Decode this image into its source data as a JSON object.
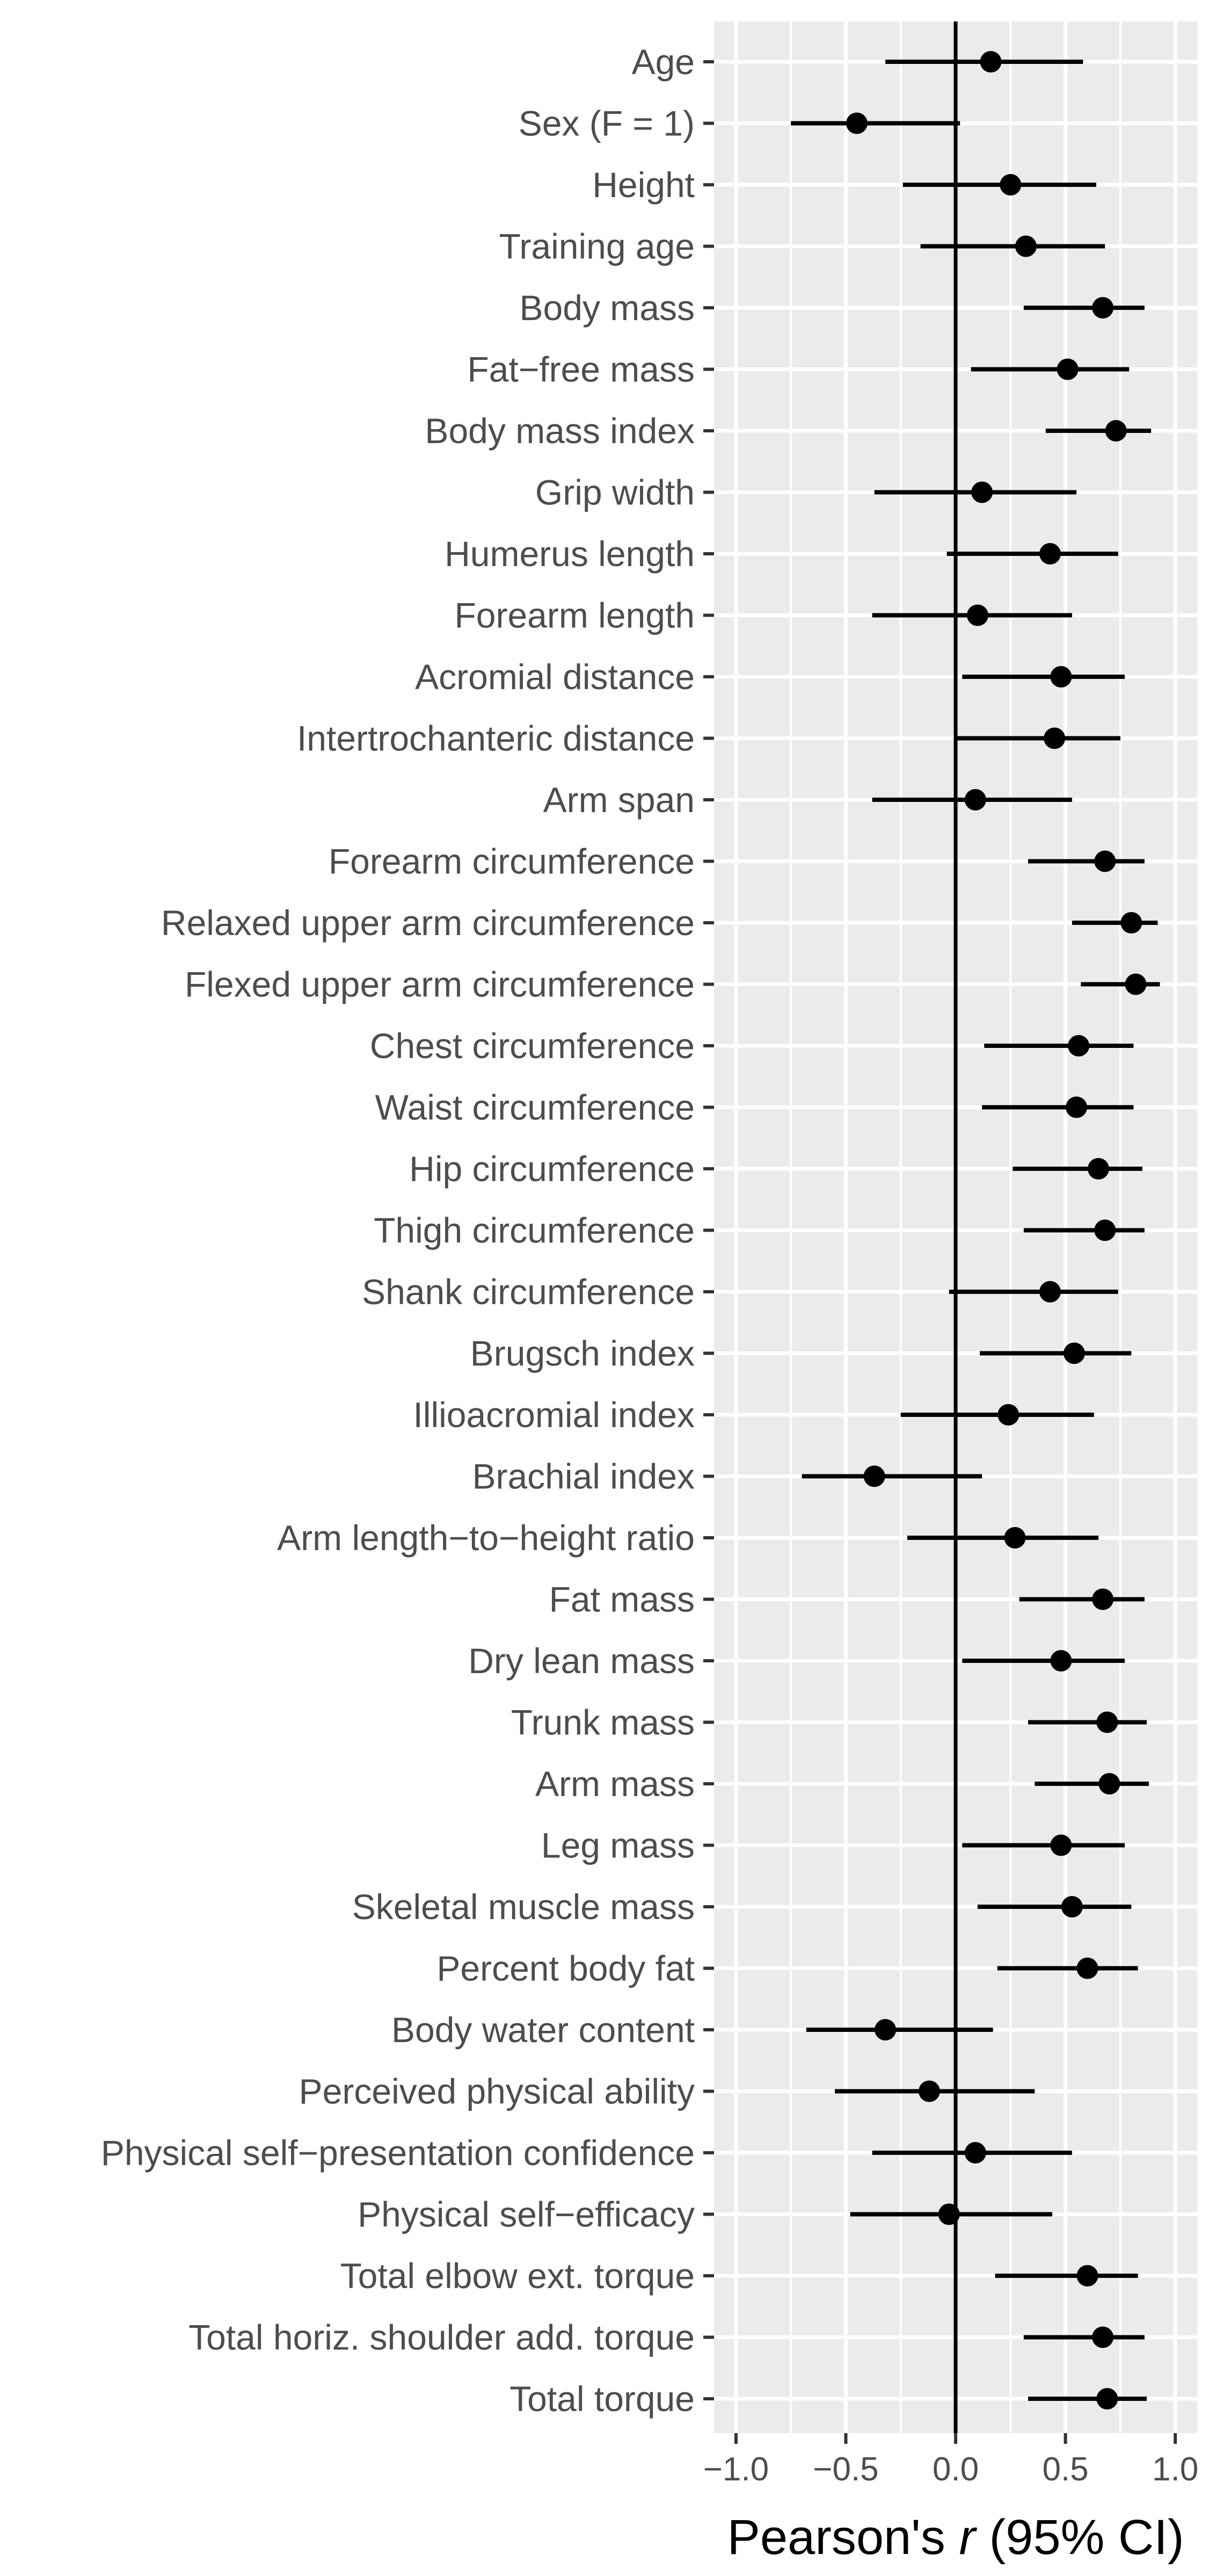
{
  "chart_data": {
    "type": "forest",
    "xlabel_prefix": "Pearson's ",
    "xlabel_var": "r",
    "xlabel_suffix": " (95% CI)",
    "xlim": [
      -1.1,
      1.1
    ],
    "xticks": [
      -1.0,
      -0.5,
      0.0,
      0.5,
      1.0
    ],
    "xtick_labels": [
      "−1.0",
      "−0.5",
      "0.0",
      "0.5",
      "1.0"
    ],
    "reference_line": 0,
    "grid": true,
    "rows": [
      {
        "label": "Age",
        "r": 0.16,
        "lo": -0.32,
        "hi": 0.58
      },
      {
        "label": "Sex (F = 1)",
        "r": -0.45,
        "lo": -0.75,
        "hi": 0.02
      },
      {
        "label": "Height",
        "r": 0.25,
        "lo": -0.24,
        "hi": 0.64
      },
      {
        "label": "Training age",
        "r": 0.32,
        "lo": -0.16,
        "hi": 0.68
      },
      {
        "label": "Body mass",
        "r": 0.67,
        "lo": 0.31,
        "hi": 0.86
      },
      {
        "label": "Fat−free mass",
        "r": 0.51,
        "lo": 0.07,
        "hi": 0.79
      },
      {
        "label": "Body mass index",
        "r": 0.73,
        "lo": 0.41,
        "hi": 0.89
      },
      {
        "label": "Grip width",
        "r": 0.12,
        "lo": -0.37,
        "hi": 0.55
      },
      {
        "label": "Humerus length",
        "r": 0.43,
        "lo": -0.04,
        "hi": 0.74
      },
      {
        "label": "Forearm length",
        "r": 0.1,
        "lo": -0.38,
        "hi": 0.53
      },
      {
        "label": "Acromial distance",
        "r": 0.48,
        "lo": 0.03,
        "hi": 0.77
      },
      {
        "label": "Intertrochanteric distance",
        "r": 0.45,
        "lo": 0.0,
        "hi": 0.75
      },
      {
        "label": "Arm span",
        "r": 0.09,
        "lo": -0.38,
        "hi": 0.53
      },
      {
        "label": "Forearm circumference",
        "r": 0.68,
        "lo": 0.33,
        "hi": 0.86
      },
      {
        "label": "Relaxed upper arm circumference",
        "r": 0.8,
        "lo": 0.53,
        "hi": 0.92
      },
      {
        "label": "Flexed upper arm circumference",
        "r": 0.82,
        "lo": 0.57,
        "hi": 0.93
      },
      {
        "label": "Chest circumference",
        "r": 0.56,
        "lo": 0.13,
        "hi": 0.81
      },
      {
        "label": "Waist circumference",
        "r": 0.55,
        "lo": 0.12,
        "hi": 0.81
      },
      {
        "label": "Hip circumference",
        "r": 0.65,
        "lo": 0.26,
        "hi": 0.85
      },
      {
        "label": "Thigh circumference",
        "r": 0.68,
        "lo": 0.31,
        "hi": 0.86
      },
      {
        "label": "Shank circumference",
        "r": 0.43,
        "lo": -0.03,
        "hi": 0.74
      },
      {
        "label": "Brugsch index",
        "r": 0.54,
        "lo": 0.11,
        "hi": 0.8
      },
      {
        "label": "Illioacromial index",
        "r": 0.24,
        "lo": -0.25,
        "hi": 0.63
      },
      {
        "label": "Brachial index",
        "r": -0.37,
        "lo": -0.7,
        "hi": 0.12
      },
      {
        "label": "Arm length−to−height ratio",
        "r": 0.27,
        "lo": -0.22,
        "hi": 0.65
      },
      {
        "label": "Fat mass",
        "r": 0.67,
        "lo": 0.29,
        "hi": 0.86
      },
      {
        "label": "Dry lean mass",
        "r": 0.48,
        "lo": 0.03,
        "hi": 0.77
      },
      {
        "label": "Trunk mass",
        "r": 0.69,
        "lo": 0.33,
        "hi": 0.87
      },
      {
        "label": "Arm mass",
        "r": 0.7,
        "lo": 0.36,
        "hi": 0.88
      },
      {
        "label": "Leg mass",
        "r": 0.48,
        "lo": 0.03,
        "hi": 0.77
      },
      {
        "label": "Skeletal muscle mass",
        "r": 0.53,
        "lo": 0.1,
        "hi": 0.8
      },
      {
        "label": "Percent body fat",
        "r": 0.6,
        "lo": 0.19,
        "hi": 0.83
      },
      {
        "label": "Body water content",
        "r": -0.32,
        "lo": -0.68,
        "hi": 0.17
      },
      {
        "label": "Perceived physical ability",
        "r": -0.12,
        "lo": -0.55,
        "hi": 0.36
      },
      {
        "label": "Physical self−presentation confidence",
        "r": 0.09,
        "lo": -0.38,
        "hi": 0.53
      },
      {
        "label": "Physical self−efficacy",
        "r": -0.03,
        "lo": -0.48,
        "hi": 0.44
      },
      {
        "label": "Total elbow ext. torque",
        "r": 0.6,
        "lo": 0.18,
        "hi": 0.83
      },
      {
        "label": "Total horiz. shoulder add. torque",
        "r": 0.67,
        "lo": 0.31,
        "hi": 0.86
      },
      {
        "label": "Total torque",
        "r": 0.69,
        "lo": 0.33,
        "hi": 0.87
      }
    ]
  },
  "colors": {
    "panel_background": "#ebebeb",
    "grid": "#ffffff",
    "marks": "#000000",
    "axis_text": "#4d4d4d",
    "axis_ticks": "#333333"
  }
}
